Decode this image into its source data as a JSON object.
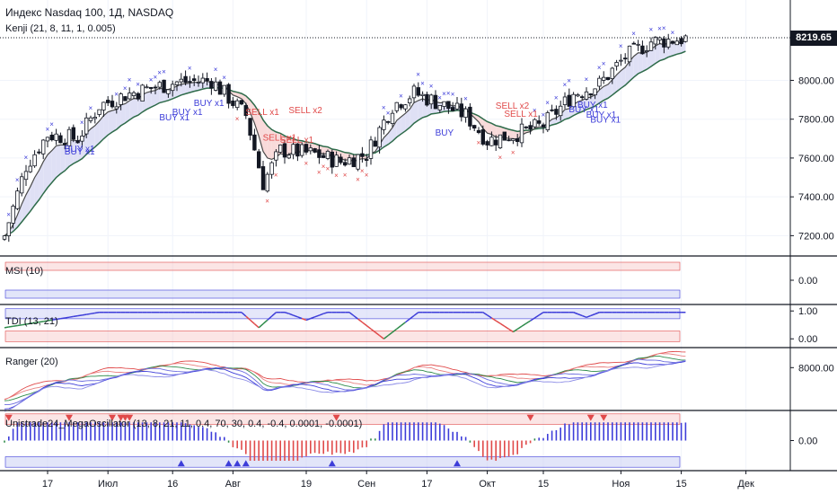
{
  "header": {
    "symbol_title": "Индекс Nasdaq 100, 1Д, NASDAQ",
    "last_price": "8219.65"
  },
  "colors": {
    "bull": "#ffffff",
    "bear": "#131722",
    "buy_marker": "#3d3dd9",
    "sell_marker": "#e04a4a",
    "kenji_upper": "#4a4a4a",
    "kenji_lower": "#2e6b4a",
    "cloud_bull": "#dfe0f5",
    "cloud_bear": "#f8dada",
    "band_red": "#f7c5c5",
    "band_blue": "#cfd3f5"
  },
  "chart_data": [
    {
      "type": "candlestick",
      "name": "price",
      "title": "Индекс Nasdaq 100, 1Д, NASDAQ",
      "ylim": [
        7100,
        8400
      ],
      "yticks": [
        "7200.00",
        "7400.00",
        "7600.00",
        "7800.00",
        "8000.00"
      ],
      "ytick_values": [
        7200,
        7400,
        7600,
        7800,
        8000
      ],
      "legend_label": "Kenji (21, 8, 11, 1, 0.005)",
      "annotations": [
        {
          "text": "BUY x1",
          "i": 16,
          "price": 7632
        },
        {
          "text": "BUY x1",
          "i": 16,
          "price": 7618
        },
        {
          "text": "BUY x1",
          "i": 38,
          "price": 7795
        },
        {
          "text": "BUY x1",
          "i": 41,
          "price": 7822
        },
        {
          "text": "BUY x1",
          "i": 46,
          "price": 7868
        },
        {
          "text": "SELL x1",
          "i": 58,
          "price": 7822
        },
        {
          "text": "SELL x1",
          "i": 62,
          "price": 7690
        },
        {
          "text": "SELL x1",
          "i": 66,
          "price": 7678
        },
        {
          "text": "SELL x2",
          "i": 68,
          "price": 7832
        },
        {
          "text": "BUY",
          "i": 102,
          "price": 7715
        },
        {
          "text": "SELL x2",
          "i": 116,
          "price": 7855
        },
        {
          "text": "SELL x1",
          "i": 118,
          "price": 7812
        },
        {
          "text": "BUY x1",
          "i": 133,
          "price": 7835
        },
        {
          "text": "BUY x1",
          "i": 135,
          "price": 7858
        },
        {
          "text": "BUY x1",
          "i": 137,
          "price": 7808
        },
        {
          "text": "BUY x1",
          "i": 138,
          "price": 7782
        }
      ]
    },
    {
      "type": "line",
      "name": "MSI",
      "legend_label": "MSI (10)",
      "ytick": "0.00",
      "ylim": [
        -1.3,
        1.3
      ]
    },
    {
      "type": "line",
      "name": "TDI",
      "legend_label": "TDI (13, 21)",
      "yticks": [
        "1.00",
        "0.00"
      ],
      "ytick_values": [
        1,
        0
      ],
      "ylim": [
        -0.25,
        1.2
      ]
    },
    {
      "type": "line",
      "name": "Ranger",
      "legend_label": "Ranger (20)",
      "ytick": "8000.00",
      "ytick_value": 8000,
      "ylim": [
        7100,
        8400
      ]
    },
    {
      "type": "bar",
      "name": "MegaOscillator",
      "legend_label": "Unistrade24_MegaOscillator (13, 8, 21, 11, 0.4, 70, 30, 0.4, -0.4, 0.0001, -0.0001)",
      "ytick": "0.00",
      "ylim": [
        -1.4,
        1.4
      ],
      "down_triangles_at": [
        1,
        15,
        25,
        27,
        28,
        29,
        77,
        122,
        136,
        139
      ],
      "up_triangles_at": [
        41,
        52,
        54,
        56,
        76,
        105
      ]
    }
  ],
  "x_axis": {
    "labels": [
      {
        "text": "17",
        "i": 10
      },
      {
        "text": "Июл",
        "i": 24
      },
      {
        "text": "16",
        "i": 39
      },
      {
        "text": "Авг",
        "i": 53
      },
      {
        "text": "19",
        "i": 70
      },
      {
        "text": "Сен",
        "i": 84
      },
      {
        "text": "17",
        "i": 98
      },
      {
        "text": "Окт",
        "i": 112
      },
      {
        "text": "15",
        "i": 125
      },
      {
        "text": "Ноя",
        "i": 143
      },
      {
        "text": "15",
        "i": 157
      },
      {
        "text": "Дек",
        "i": 172
      }
    ]
  }
}
